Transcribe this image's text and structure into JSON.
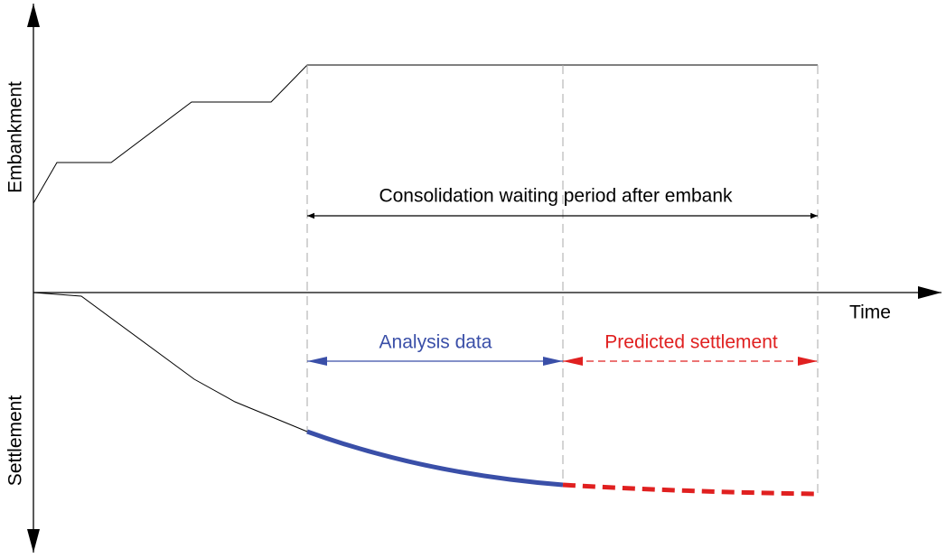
{
  "axes": {
    "y_top": "Embankment",
    "y_bottom": "Settlement",
    "x": "Time"
  },
  "annotations": {
    "consolidation": "Consolidation waiting period after embank",
    "analysis": "Analysis data",
    "prediction": "Predicted settlement"
  }
}
